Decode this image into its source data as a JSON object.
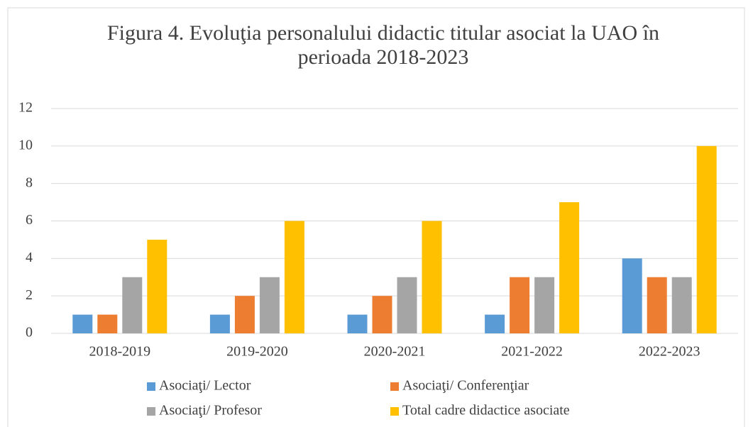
{
  "chart_data": {
    "type": "bar",
    "title": "Figura 4. Evoluţia personalului didactic titular asociat la UAO în perioada 2018-2023",
    "categories": [
      "2018-2019",
      "2019-2020",
      "2020-2021",
      "2021-2022",
      "2022-2023"
    ],
    "series": [
      {
        "name": "Asociaţi/ Lector",
        "color": "#5b9bd5",
        "values": [
          1,
          1,
          1,
          1,
          4
        ]
      },
      {
        "name": "Asociaţi/ Conferenţiar",
        "color": "#ed7d31",
        "values": [
          1,
          2,
          2,
          3,
          3
        ]
      },
      {
        "name": "Asociaţi/ Profesor",
        "color": "#a5a5a5",
        "values": [
          3,
          3,
          3,
          3,
          3
        ]
      },
      {
        "name": "Total cadre didactice asociate",
        "color": "#ffc000",
        "values": [
          5,
          6,
          6,
          7,
          10
        ]
      }
    ],
    "ylim": [
      0,
      12
    ],
    "yticks": [
      0,
      2,
      4,
      6,
      8,
      10,
      12
    ],
    "grid": true,
    "legend": "bottom"
  }
}
